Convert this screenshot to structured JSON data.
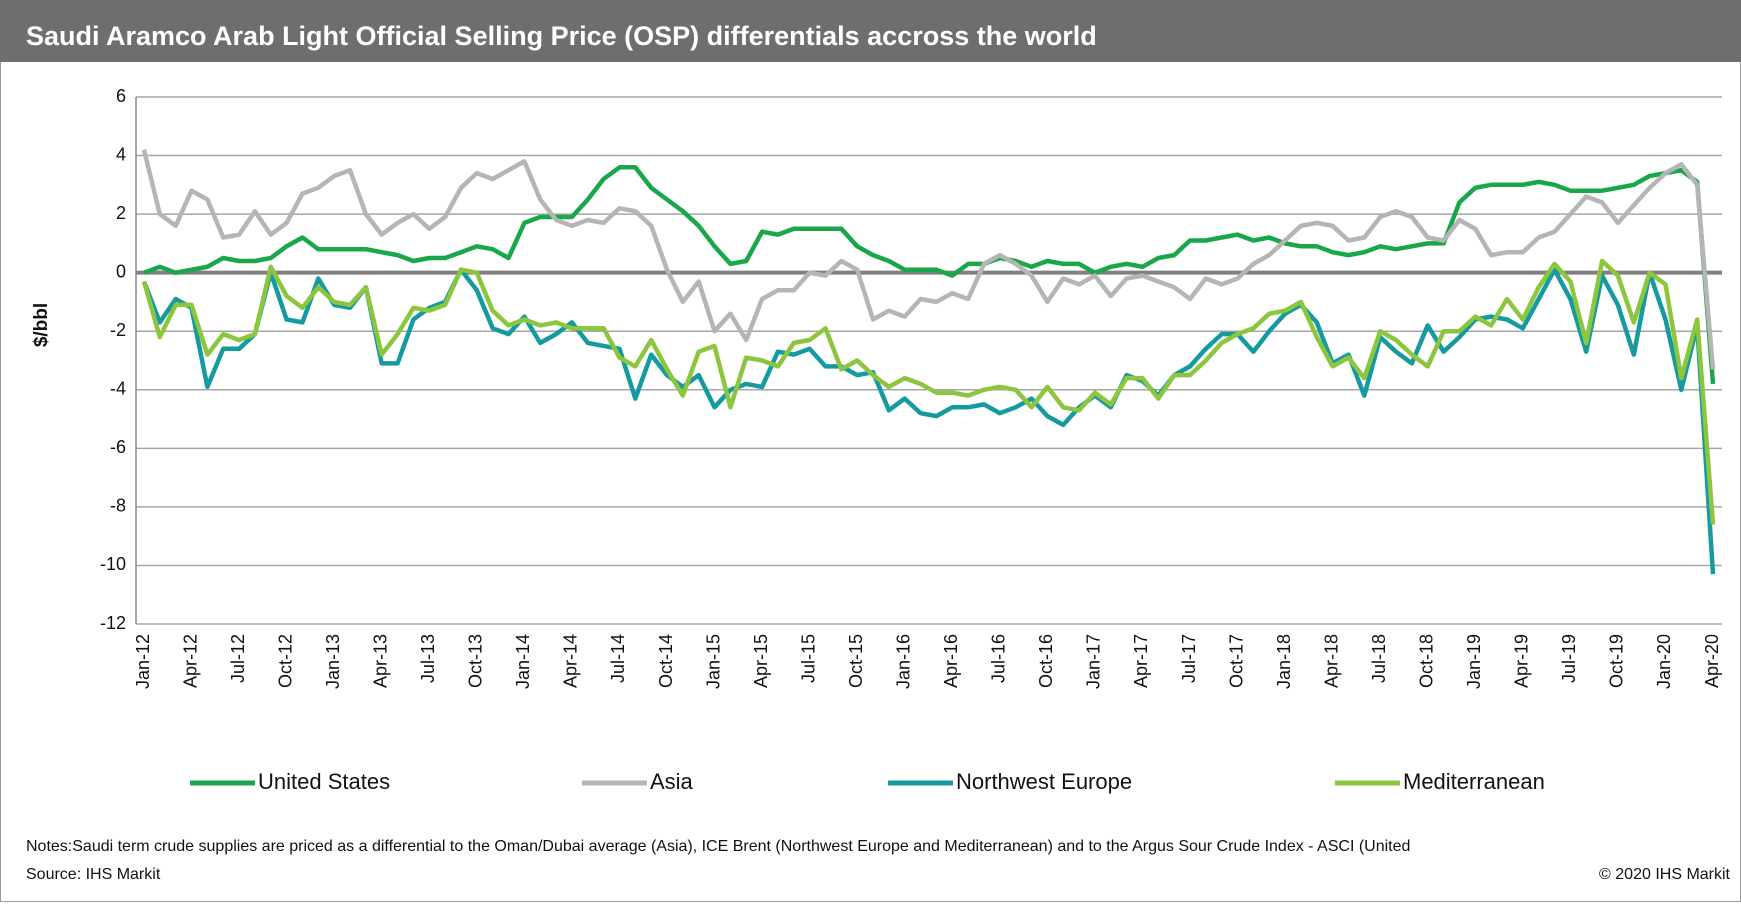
{
  "chart_data": {
    "type": "line",
    "title": "Saudi Aramco Arab Light Official Selling Price (OSP) differentials accross the world",
    "y_label": "$/bbl",
    "ylim": [
      -12,
      6
    ],
    "yticks": [
      -12,
      -10,
      -8,
      -6,
      -4,
      -2,
      0,
      2,
      4,
      6
    ],
    "grid": true,
    "legend": "bottom",
    "categories": [
      "Jan-12",
      null,
      null,
      "Apr-12",
      null,
      null,
      "Jul-12",
      null,
      null,
      "Oct-12",
      null,
      null,
      "Jan-13",
      null,
      null,
      "Apr-13",
      null,
      null,
      "Jul-13",
      null,
      null,
      "Oct-13",
      null,
      null,
      "Jan-14",
      null,
      null,
      "Apr-14",
      null,
      null,
      "Jul-14",
      null,
      null,
      "Oct-14",
      null,
      null,
      "Jan-15",
      null,
      null,
      "Apr-15",
      null,
      null,
      "Jul-15",
      null,
      null,
      "Oct-15",
      null,
      null,
      "Jan-16",
      null,
      null,
      "Apr-16",
      null,
      null,
      "Jul-16",
      null,
      null,
      "Oct-16",
      null,
      null,
      "Jan-17",
      null,
      null,
      "Apr-17",
      null,
      null,
      "Jul-17",
      null,
      null,
      "Oct-17",
      null,
      null,
      "Jan-18",
      null,
      null,
      "Apr-18",
      null,
      null,
      "Jul-18",
      null,
      null,
      "Oct-18",
      null,
      null,
      "Jan-19",
      null,
      null,
      "Apr-19",
      null,
      null,
      "Jul-19",
      null,
      null,
      "Oct-19",
      null,
      null,
      "Jan-20",
      null,
      null,
      "Apr-20"
    ],
    "series": [
      {
        "name": "United States",
        "color": "#1aa64a",
        "values": [
          0,
          0.2,
          0,
          0.1,
          0.2,
          0.5,
          0.4,
          0.4,
          0.5,
          0.9,
          1.2,
          0.8,
          0.8,
          0.8,
          0.8,
          0.7,
          0.6,
          0.4,
          0.5,
          0.5,
          0.7,
          0.9,
          0.8,
          0.5,
          1.7,
          1.9,
          1.9,
          1.9,
          2.5,
          3.2,
          3.6,
          3.6,
          2.9,
          2.5,
          2.1,
          1.6,
          0.9,
          0.3,
          0.4,
          1.4,
          1.3,
          1.5,
          1.5,
          1.5,
          1.5,
          0.9,
          0.6,
          0.4,
          0.1,
          0.1,
          0.1,
          -0.1,
          0.3,
          0.3,
          0.5,
          0.4,
          0.2,
          0.4,
          0.3,
          0.3,
          0,
          0.2,
          0.3,
          0.2,
          0.5,
          0.6,
          1.1,
          1.1,
          1.2,
          1.3,
          1.1,
          1.2,
          1.0,
          0.9,
          0.9,
          0.7,
          0.6,
          0.7,
          0.9,
          0.8,
          0.9,
          1.0,
          1.0,
          2.4,
          2.9,
          3.0,
          3.0,
          3.0,
          3.1,
          3.0,
          2.8,
          2.8,
          2.8,
          2.9,
          3.0,
          3.3,
          3.4,
          3.5,
          3.1,
          -3.8
        ]
      },
      {
        "name": "Asia",
        "color": "#b5b5b5",
        "values": [
          4.2,
          2.0,
          1.6,
          2.8,
          2.5,
          1.2,
          1.3,
          2.1,
          1.3,
          1.7,
          2.7,
          2.9,
          3.3,
          3.5,
          2.0,
          1.3,
          1.7,
          2.0,
          1.5,
          1.9,
          2.9,
          3.4,
          3.2,
          3.5,
          3.8,
          2.5,
          1.8,
          1.6,
          1.8,
          1.7,
          2.2,
          2.1,
          1.6,
          0.1,
          -1.0,
          -0.3,
          -2.0,
          -1.4,
          -2.3,
          -0.9,
          -0.6,
          -0.6,
          0,
          -0.1,
          0.4,
          0.1,
          -1.6,
          -1.3,
          -1.5,
          -0.9,
          -1.0,
          -0.7,
          -0.9,
          0.3,
          0.6,
          0.3,
          -0.1,
          -1.0,
          -0.2,
          -0.4,
          -0.1,
          -0.8,
          -0.2,
          -0.1,
          -0.3,
          -0.5,
          -0.9,
          -0.2,
          -0.4,
          -0.2,
          0.3,
          0.6,
          1.1,
          1.6,
          1.7,
          1.6,
          1.1,
          1.2,
          1.9,
          2.1,
          1.9,
          1.2,
          1.1,
          1.8,
          1.5,
          0.6,
          0.7,
          0.7,
          1.2,
          1.4,
          2.0,
          2.6,
          2.4,
          1.7,
          2.3,
          2.9,
          3.4,
          3.7,
          3.0,
          -3.3
        ]
      },
      {
        "name": "Northwest Europe",
        "color": "#159aa0",
        "values": [
          -0.3,
          -1.7,
          -0.9,
          -1.2,
          -3.9,
          -2.6,
          -2.6,
          -2.1,
          0.0,
          -1.6,
          -1.7,
          -0.2,
          -1.1,
          -1.2,
          -0.5,
          -3.1,
          -3.1,
          -1.6,
          -1.2,
          -1.0,
          0.1,
          -0.6,
          -1.9,
          -2.1,
          -1.5,
          -2.4,
          -2.1,
          -1.7,
          -2.4,
          -2.5,
          -2.6,
          -4.3,
          -2.8,
          -3.5,
          -3.9,
          -3.5,
          -4.6,
          -4.0,
          -3.8,
          -3.9,
          -2.7,
          -2.8,
          -2.6,
          -3.2,
          -3.2,
          -3.5,
          -3.4,
          -4.7,
          -4.3,
          -4.8,
          -4.9,
          -4.6,
          -4.6,
          -4.5,
          -4.8,
          -4.6,
          -4.3,
          -4.9,
          -5.2,
          -4.6,
          -4.2,
          -4.6,
          -3.5,
          -3.7,
          -4.2,
          -3.5,
          -3.2,
          -2.6,
          -2.1,
          -2.1,
          -2.7,
          -2.0,
          -1.4,
          -1.1,
          -1.7,
          -3.1,
          -2.8,
          -4.2,
          -2.2,
          -2.7,
          -3.1,
          -1.8,
          -2.7,
          -2.2,
          -1.6,
          -1.5,
          -1.6,
          -1.9,
          -0.9,
          0.1,
          -0.9,
          -2.7,
          -0.1,
          -1.1,
          -2.8,
          0.0,
          -1.6,
          -4.0,
          -1.8,
          -10.3
        ]
      },
      {
        "name": "Mediterranean",
        "color": "#8cc63f",
        "values": [
          -0.3,
          -2.2,
          -1.1,
          -1.1,
          -2.8,
          -2.1,
          -2.3,
          -2.1,
          0.2,
          -0.8,
          -1.2,
          -0.5,
          -1.0,
          -1.1,
          -0.5,
          -2.8,
          -2.1,
          -1.2,
          -1.3,
          -1.1,
          0.1,
          0,
          -1.3,
          -1.8,
          -1.6,
          -1.8,
          -1.7,
          -1.9,
          -1.9,
          -1.9,
          -2.9,
          -3.2,
          -2.3,
          -3.3,
          -4.2,
          -2.7,
          -2.5,
          -4.6,
          -2.9,
          -3.0,
          -3.2,
          -2.4,
          -2.3,
          -1.9,
          -3.3,
          -3.0,
          -3.5,
          -3.9,
          -3.6,
          -3.8,
          -4.1,
          -4.1,
          -4.2,
          -4.0,
          -3.9,
          -4.0,
          -4.6,
          -3.9,
          -4.6,
          -4.7,
          -4.1,
          -4.5,
          -3.6,
          -3.6,
          -4.3,
          -3.5,
          -3.5,
          -3.0,
          -2.4,
          -2.1,
          -1.9,
          -1.4,
          -1.3,
          -1.0,
          -2.2,
          -3.2,
          -2.9,
          -3.6,
          -2.0,
          -2.3,
          -2.8,
          -3.2,
          -2.0,
          -2.0,
          -1.5,
          -1.8,
          -0.9,
          -1.6,
          -0.5,
          0.3,
          -0.3,
          -2.4,
          0.4,
          -0.1,
          -1.7,
          0.0,
          -0.4,
          -3.6,
          -1.6,
          -8.6
        ]
      }
    ],
    "notes": "Notes:Saudi term crude supplies are priced as a differential to the Oman/Dubai average (Asia), ICE Brent (Northwest Europe and Mediterranean) and to the Argus Sour Crude Index - ASCI (United",
    "source": "Source: IHS Markit",
    "copyright": "© 2020 IHS Markit"
  }
}
